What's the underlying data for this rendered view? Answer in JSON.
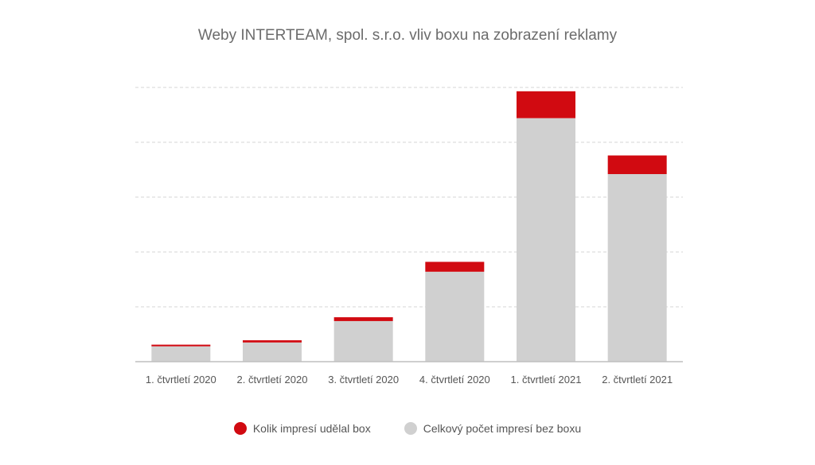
{
  "chart_data": {
    "type": "bar",
    "stacked": true,
    "title": "Weby INTERTEAM, spol. s.r.o. vliv boxu na zobrazení reklamy",
    "xlabel": "",
    "ylabel": "",
    "y_tick_labels_shown": false,
    "grid": "horizontal-dashed",
    "legend_position": "bottom",
    "ylim": [
      0,
      500
    ],
    "categories": [
      "1. čtvrtletí 2020",
      "2. čtvrtletí 2020",
      "3. čtvrtletí 2020",
      "4. čtvrtletí 2020",
      "1. čtvrtletí 2021",
      "2. čtvrtletí 2021"
    ],
    "series": [
      {
        "name": "Celkový počet impresí bez boxu",
        "color": "#d0d0d0",
        "values": [
          28,
          35,
          74,
          164,
          444,
          342
        ]
      },
      {
        "name": "Kolik impresí udělal box",
        "color": "#d10a11",
        "values": [
          3,
          4,
          7,
          18,
          49,
          34
        ]
      }
    ]
  },
  "legend": [
    {
      "label": "Kolik impresí udělal box",
      "color": "#d10a11"
    },
    {
      "label": "Celkový počet impresí bez boxu",
      "color": "#d0d0d0"
    }
  ]
}
